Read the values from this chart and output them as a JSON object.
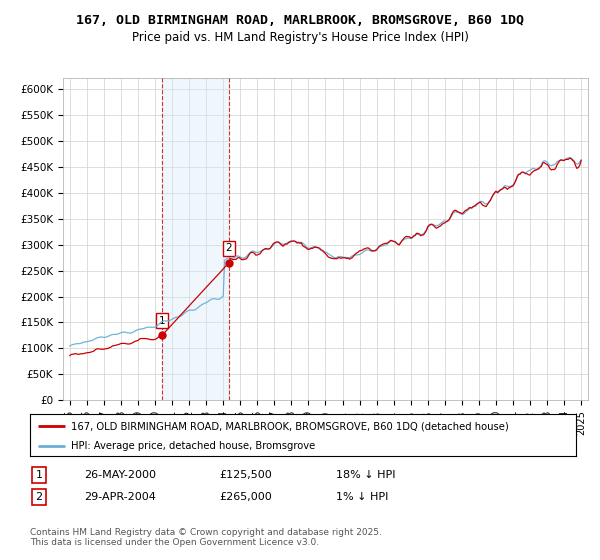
{
  "title": "167, OLD BIRMINGHAM ROAD, MARLBROOK, BROMSGROVE, B60 1DQ",
  "subtitle": "Price paid vs. HM Land Registry's House Price Index (HPI)",
  "ylim": [
    0,
    620000
  ],
  "yticks": [
    0,
    50000,
    100000,
    150000,
    200000,
    250000,
    300000,
    350000,
    400000,
    450000,
    500000,
    550000,
    600000
  ],
  "ytick_labels": [
    "£0",
    "£50K",
    "£100K",
    "£150K",
    "£200K",
    "£250K",
    "£300K",
    "£350K",
    "£400K",
    "£450K",
    "£500K",
    "£550K",
    "£600K"
  ],
  "background_color": "#ffffff",
  "grid_color": "#d0d0d0",
  "hpi_color": "#6baed6",
  "price_color": "#cc0000",
  "sale1_year": 2000.4,
  "sale1_price": 125500,
  "sale2_year": 2004.33,
  "sale2_price": 265000,
  "shade_color": "#d6eaf8",
  "legend_line1": "167, OLD BIRMINGHAM ROAD, MARLBROOK, BROMSGROVE, B60 1DQ (detached house)",
  "legend_line2": "HPI: Average price, detached house, Bromsgrove",
  "table_row1": [
    "1",
    "26-MAY-2000",
    "£125,500",
    "18% ↓ HPI"
  ],
  "table_row2": [
    "2",
    "29-APR-2004",
    "£265,000",
    "1% ↓ HPI"
  ],
  "footnote": "Contains HM Land Registry data © Crown copyright and database right 2025.\nThis data is licensed under the Open Government Licence v3.0.",
  "x_start_year": 1995,
  "x_end_year": 2025
}
